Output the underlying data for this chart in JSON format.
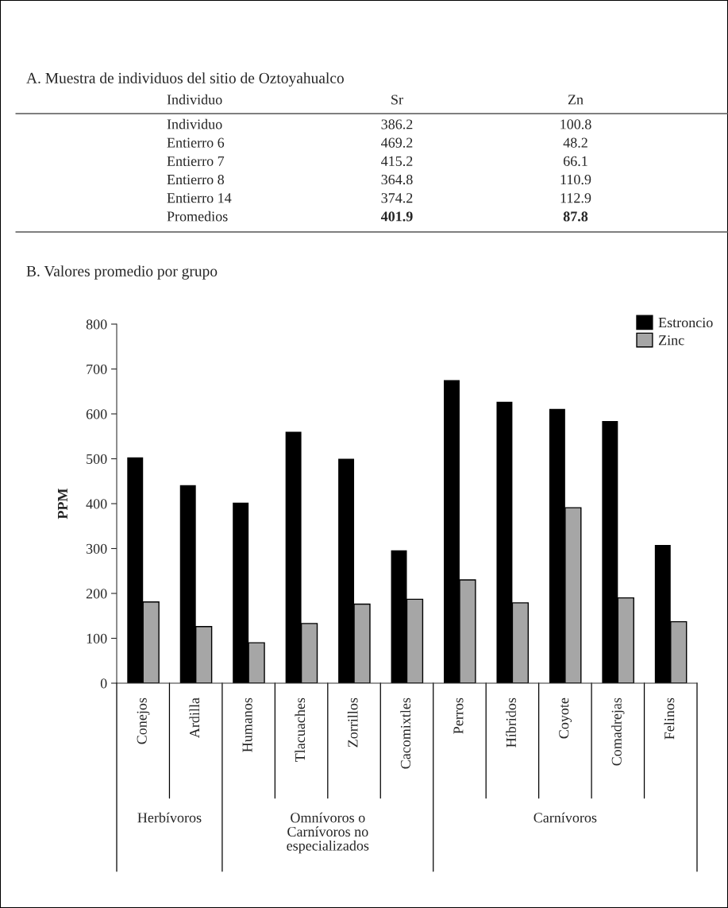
{
  "chart_data": [
    {
      "type": "other",
      "title": "A. Muestra de individuos del sitio de Oztoyahualco",
      "xlabel": "Individuo",
      "categories": [
        "Individuo",
        "Entierro 6",
        "Entierro 7",
        "Entierro 8",
        "Entierro 14",
        "Promedios"
      ],
      "data_labels": true,
      "series": [
        {
          "name": "Sr",
          "values": [
            386.2,
            469.2,
            415.2,
            364.8,
            374.2,
            401.9
          ]
        },
        {
          "name": "Zn",
          "values": [
            100.8,
            48.2,
            66.1,
            110.9,
            112.9,
            87.8
          ]
        }
      ]
    },
    {
      "type": "bar",
      "title": "B. Valores promedio por grupo",
      "ylabel": "PPM",
      "categories": [
        "Conejos",
        "Ardilla",
        "Humanos",
        "Tlacuaches",
        "Zorrillos",
        "Cacomixtles",
        "Perros",
        "Híbridos",
        "Coyote",
        "Comadrejas",
        "Felinos"
      ],
      "ylim": [
        0,
        800
      ],
      "yticks": [
        0,
        100,
        200,
        300,
        400,
        500,
        600,
        700,
        800
      ],
      "grid": false,
      "legend": "top right",
      "annotations": [
        "Herbívoros",
        "Omnívoros o\nCarnívoros no\nespecializados",
        "Carnívoros"
      ],
      "series": [
        {
          "name": "Estroncio",
          "color": "#000000",
          "values": [
            503,
            441,
            402,
            560,
            500,
            296,
            675,
            627,
            611,
            584,
            308
          ]
        },
        {
          "name": "Zinc",
          "color": "#a6a6a6",
          "values": [
            181,
            126,
            90,
            133,
            176,
            187,
            230,
            179,
            391,
            190,
            137
          ]
        }
      ]
    }
  ]
}
